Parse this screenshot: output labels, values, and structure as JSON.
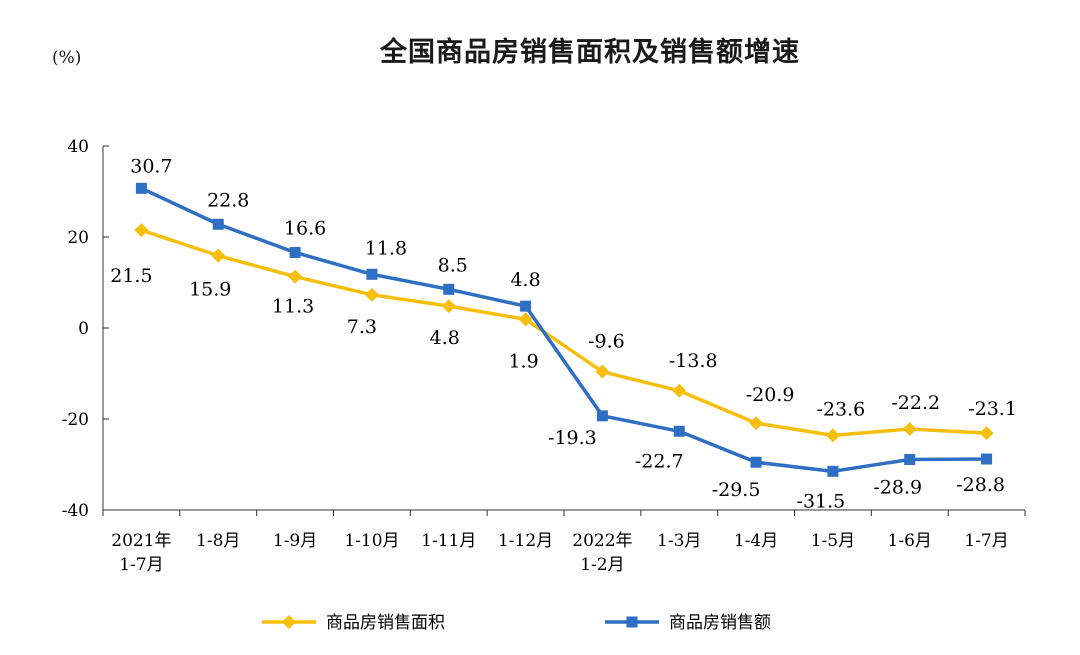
{
  "chart_data": {
    "type": "line",
    "title": "全国商品房销售面积及销售额增速",
    "ylabel": "(%)",
    "ylim": [
      -40,
      40
    ],
    "yticks": [
      40,
      20,
      0,
      -20,
      -40
    ],
    "categories": [
      [
        "2021年",
        "1-7月"
      ],
      [
        "1-8月"
      ],
      [
        "1-9月"
      ],
      [
        "1-10月"
      ],
      [
        "1-11月"
      ],
      [
        "1-12月"
      ],
      [
        "2022年",
        "1-2月"
      ],
      [
        "1-3月"
      ],
      [
        "1-4月"
      ],
      [
        "1-5月"
      ],
      [
        "1-6月"
      ],
      [
        "1-7月"
      ]
    ],
    "series": [
      {
        "name": "商品房销售面积",
        "color": "#f7be0c",
        "marker": "diamond",
        "values": [
          21.5,
          15.9,
          11.3,
          7.3,
          4.8,
          1.9,
          -9.6,
          -13.8,
          -20.9,
          -23.6,
          -22.2,
          -23.1
        ],
        "labels": [
          "21.5",
          "15.9",
          "11.3",
          "7.3",
          "4.8",
          "1.9",
          "-9.6",
          "-13.8",
          "-20.9",
          "-23.6",
          "-22.2",
          "-23.1"
        ]
      },
      {
        "name": "商品房销售额",
        "color": "#2e6fc4",
        "marker": "square",
        "values": [
          30.7,
          22.8,
          16.6,
          11.8,
          8.5,
          4.8,
          -19.3,
          -22.7,
          -29.5,
          -31.5,
          -28.9,
          -28.8
        ],
        "labels": [
          "30.7",
          "22.8",
          "16.6",
          "11.8",
          "8.5",
          "4.8",
          "-19.3",
          "-22.7",
          "-29.5",
          "-31.5",
          "-28.9",
          "-28.8"
        ]
      }
    ],
    "legend": "bottom",
    "grid": false
  }
}
